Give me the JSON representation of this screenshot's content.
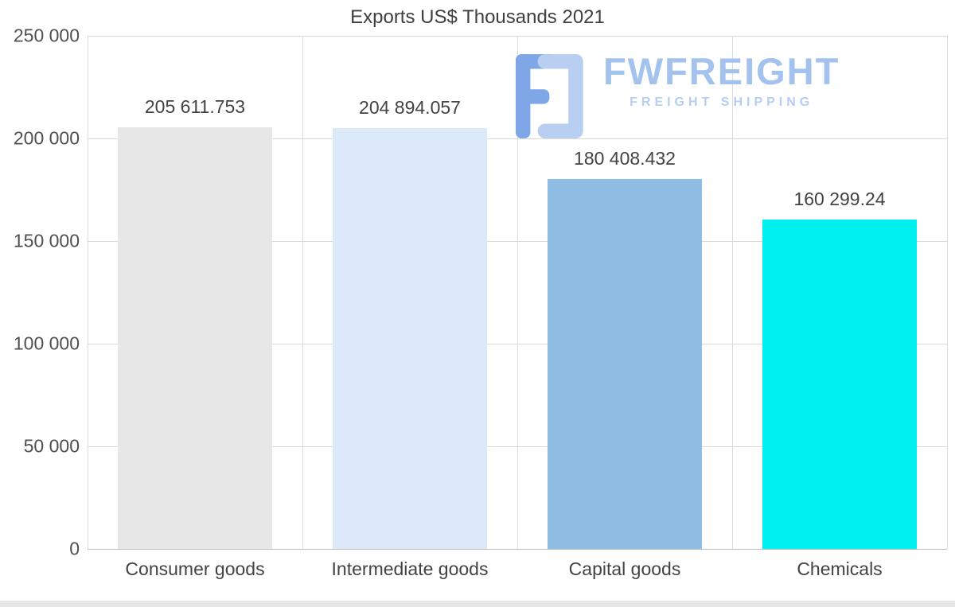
{
  "title": "Exports US$ Thousands 2021",
  "watermark": {
    "brand": "FWFREIGHT",
    "tagline": "FREIGHT SHIPPING",
    "brand_color": "#a3c2ee",
    "tagline_color": "#b6cef4",
    "icon_dark": "#7fa6e6",
    "icon_light": "#b9cff2"
  },
  "chart_data": {
    "type": "bar",
    "title": "Exports US$ Thousands 2021",
    "categories": [
      "Consumer goods",
      "Intermediate goods",
      "Capital goods",
      "Chemicals"
    ],
    "values": [
      205611.753,
      204894.057,
      180408.432,
      160299.24
    ],
    "value_labels": [
      "205 611.753",
      "204 894.057",
      "180 408.432",
      "160 299.24"
    ],
    "bar_colors": [
      "#e7e7e7",
      "#dce9f8",
      "#8fbce2",
      "#00f0f0"
    ],
    "xlabel": "",
    "ylabel": "",
    "ylim": [
      0,
      250000
    ],
    "yticks": [
      0,
      50000,
      100000,
      150000,
      200000,
      250000
    ],
    "ytick_labels": [
      "0",
      "50 000",
      "100 000",
      "150 000",
      "200 000",
      "250 000"
    ],
    "grid": true,
    "legend": false,
    "legend_position": "none"
  }
}
